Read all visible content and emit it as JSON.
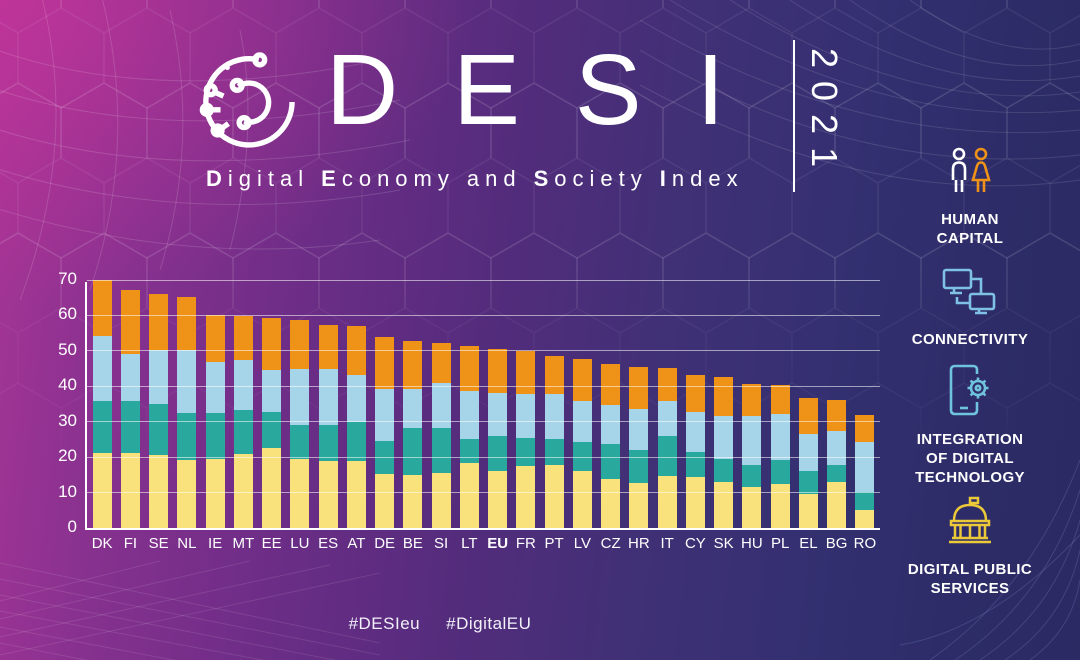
{
  "header": {
    "title": "DESI",
    "year": "2021",
    "subtitle_words": {
      "w1": "Digital",
      "w2": "Economy",
      "w3": "and",
      "w4": "Society",
      "w5": "Index"
    }
  },
  "panel": [
    {
      "icon": "human-capital-icon",
      "label": "HUMAN\nCAPITAL"
    },
    {
      "icon": "connectivity-icon",
      "label": "CONNECTIVITY"
    },
    {
      "icon": "integration-of-digital-technology-icon",
      "label": "INTEGRATION\nOF DIGITAL\nTECHNOLOGY"
    },
    {
      "icon": "digital-public-services-icon",
      "label": "DIGITAL PUBLIC\nSERVICES"
    }
  ],
  "footer": {
    "hashtag1": "#DESIeu",
    "hashtag2": "#DigitalEU"
  },
  "colors": {
    "digital_public_services": "#F9E27C",
    "integration_of_digital_technology": "#29A89D",
    "connectivity": "#A6D4E8",
    "human_capital": "#EE9318",
    "axis": "#FFFFFF",
    "gridline": "rgba(255,255,255,0.55)"
  },
  "chart_data": {
    "type": "bar",
    "stacked": true,
    "title": "DESI 2021 by country, stacked by dimension",
    "categories": [
      "DK",
      "FI",
      "SE",
      "NL",
      "IE",
      "MT",
      "EE",
      "LU",
      "ES",
      "AT",
      "DE",
      "BE",
      "SI",
      "LT",
      "EU",
      "FR",
      "PT",
      "LV",
      "CZ",
      "HR",
      "IT",
      "CY",
      "SK",
      "HU",
      "PL",
      "EL",
      "BG",
      "RO"
    ],
    "highlight_category": "EU",
    "series": [
      {
        "name": "Digital Public Services",
        "color": "#F9E27C",
        "values": [
          21.1,
          21.3,
          20.5,
          19.3,
          19.6,
          20.8,
          22.5,
          19.4,
          18.9,
          18.8,
          15.3,
          14.9,
          15.5,
          18.5,
          16.2,
          17.4,
          17.7,
          16.0,
          13.9,
          12.7,
          14.8,
          14.4,
          13.0,
          11.5,
          12.5,
          9.7,
          13.1,
          5.0
        ]
      },
      {
        "name": "Integration of Digital Technology",
        "color": "#29A89D",
        "values": [
          14.7,
          14.5,
          14.5,
          13.2,
          12.8,
          12.4,
          10.3,
          9.8,
          10.3,
          11.2,
          9.2,
          13.4,
          12.8,
          6.6,
          9.7,
          8.0,
          7.3,
          8.3,
          9.9,
          9.2,
          11.3,
          7.0,
          6.5,
          6.3,
          6.6,
          6.3,
          4.7,
          5.3
        ]
      },
      {
        "name": "Connectivity",
        "color": "#A6D4E8",
        "values": [
          18.3,
          13.4,
          15.2,
          17.8,
          14.6,
          14.2,
          11.9,
          15.7,
          15.6,
          13.2,
          14.7,
          10.9,
          12.6,
          13.5,
          12.2,
          12.4,
          12.8,
          11.5,
          11.0,
          11.8,
          9.9,
          11.5,
          12.2,
          13.9,
          13.1,
          10.6,
          9.7,
          13.9
        ]
      },
      {
        "name": "Human Capital",
        "color": "#EE9318",
        "values": [
          15.9,
          17.9,
          15.9,
          14.8,
          13.3,
          12.5,
          14.5,
          13.8,
          12.6,
          13.7,
          14.7,
          13.7,
          11.3,
          12.9,
          12.5,
          12.1,
          10.8,
          12.0,
          11.6,
          11.7,
          9.1,
          10.3,
          10.8,
          9.0,
          8.2,
          10.0,
          8.5,
          7.7
        ]
      }
    ],
    "ylim": [
      0,
      70
    ],
    "y_ticks": [
      0,
      10,
      20,
      30,
      40,
      50,
      60,
      70
    ],
    "grid": true,
    "legend_position": "right-panel-with-icons"
  }
}
